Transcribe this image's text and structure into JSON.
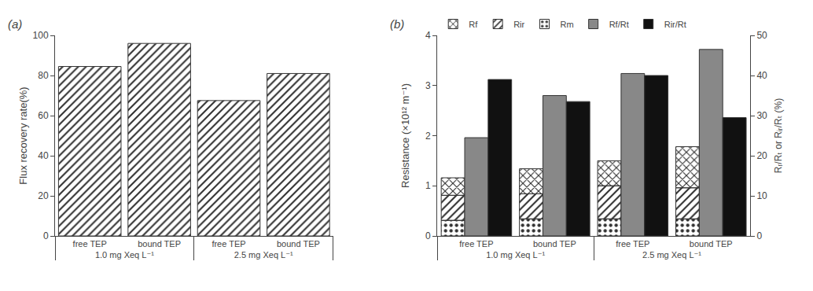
{
  "chart_data": [
    {
      "type": "bar",
      "title": "(a)",
      "categories": [
        [
          "1.0 mg Xeq L⁻¹",
          "free TEP"
        ],
        [
          "1.0 mg Xeq L⁻¹",
          "bound TEP"
        ],
        [
          "2.5 mg Xeq L⁻¹",
          "free TEP"
        ],
        [
          "2.5 mg Xeq L⁻¹",
          "bound TEP"
        ]
      ],
      "values": [
        84.5,
        96.0,
        67.5,
        81.0
      ],
      "color": "white",
      "ylabel": "Flux recovery rate(%)",
      "ylim": [
        0,
        100
      ],
      "yticks": [
        0,
        20,
        40,
        60,
        80,
        100
      ],
      "grid": false
    },
    {
      "type": "bar",
      "title": "(b)",
      "categories": [
        [
          "1.0 mg Xeq L⁻¹",
          "free TEP"
        ],
        [
          "1.0 mg Xeq L⁻¹",
          "bound TEP"
        ],
        [
          "2.5 mg Xeq L⁻¹",
          "free TEP"
        ],
        [
          "2.5 mg Xeq L⁻¹",
          "bound TEP"
        ]
      ],
      "stacked": true,
      "series": [
        {
          "name": "Rm",
          "color": "white",
          "values": [
            0.31,
            0.34,
            0.34,
            0.34
          ]
        },
        {
          "name": "Rir",
          "color": "white",
          "values": [
            0.5,
            0.5,
            0.66,
            0.62
          ]
        },
        {
          "name": "Rf",
          "color": "white",
          "values": [
            0.35,
            0.5,
            0.5,
            0.82
          ]
        },
        {
          "name": "Rf/Rt",
          "color": "#888888",
          "axis": "y2",
          "values": [
            24.5,
            35.0,
            40.5,
            46.5
          ]
        },
        {
          "name": "Rir/Rt",
          "color": "#111111",
          "axis": "y2",
          "values": [
            39.0,
            33.5,
            40.0,
            29.5
          ]
        }
      ],
      "ylabel": "Resistance (×10¹² m⁻¹)",
      "y2label": "Rᵣ/Rₜ or Rᵢᵣ/Rₜ (%)",
      "ylim": [
        0,
        4
      ],
      "yticks": [
        0,
        1,
        2,
        3,
        4
      ],
      "y2lim": [
        0,
        50
      ],
      "y2ticks": [
        0,
        10,
        20,
        30,
        40,
        50
      ],
      "legend": "top",
      "grid": false
    }
  ]
}
